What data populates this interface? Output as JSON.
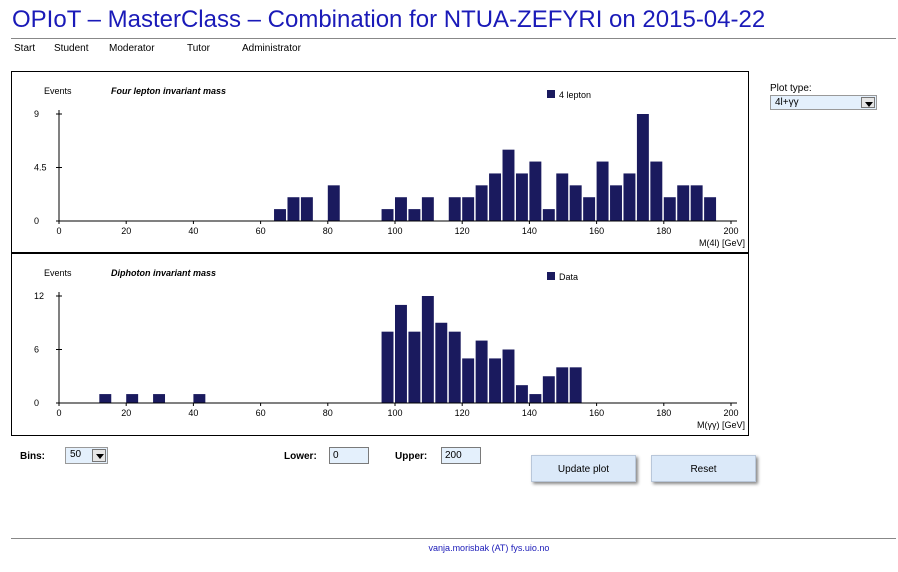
{
  "header": {
    "title": "OPIoT – MasterClass – Combination for NTUA-ZEFYRI on 2015-04-22"
  },
  "nav": {
    "items": [
      "Start",
      "Student",
      "Moderator",
      "Tutor",
      "Administrator"
    ]
  },
  "plot_type": {
    "label": "Plot type:",
    "selected": "4l+γγ"
  },
  "controls": {
    "bins_label": "Bins:",
    "bins_value": "50",
    "lower_label": "Lower:",
    "lower_value": "0",
    "upper_label": "Upper:",
    "upper_value": "200",
    "update_button": "Update plot",
    "reset_button": "Reset"
  },
  "footer": {
    "contact": "vanja.morisbak (AT) fys.uio.no"
  },
  "colors": {
    "bar": "#1a1a5e",
    "title": "#1a1ab8"
  },
  "chart_data": [
    {
      "type": "bar",
      "title": "Four lepton invariant mass",
      "ylabel": "Events",
      "xlabel": "M(4l) [GeV]",
      "legend": "4 lepton",
      "xlim": [
        0,
        200
      ],
      "yticks": [
        "0",
        "4.5",
        "9"
      ],
      "ylim": [
        0,
        9
      ],
      "xticks": [
        0,
        20,
        40,
        60,
        80,
        100,
        120,
        140,
        160,
        180,
        200
      ],
      "bin_width": 4,
      "x": [
        64,
        68,
        72,
        80,
        96,
        100,
        104,
        108,
        116,
        120,
        124,
        128,
        132,
        136,
        140,
        144,
        148,
        152,
        156,
        160,
        164,
        168,
        172,
        176,
        180,
        184,
        188,
        192
      ],
      "values": [
        1,
        2,
        2,
        3,
        1,
        2,
        1,
        2,
        2,
        2,
        3,
        4,
        6,
        4,
        5,
        1,
        4,
        3,
        2,
        5,
        3,
        4,
        9,
        5,
        2,
        3,
        3,
        2
      ]
    },
    {
      "type": "bar",
      "title": "Diphoton invariant mass",
      "ylabel": "Events",
      "xlabel": "M(γγ) [GeV]",
      "legend": "Data",
      "xlim": [
        0,
        200
      ],
      "yticks": [
        "0",
        "6",
        "12"
      ],
      "ylim": [
        0,
        12
      ],
      "xticks": [
        0,
        20,
        40,
        60,
        80,
        100,
        120,
        140,
        160,
        180,
        200
      ],
      "bin_width": 4,
      "x": [
        12,
        20,
        28,
        40,
        96,
        100,
        104,
        108,
        112,
        116,
        120,
        124,
        128,
        132,
        136,
        140,
        144,
        148,
        152
      ],
      "values": [
        1,
        1,
        1,
        1,
        8,
        11,
        8,
        12,
        9,
        8,
        5,
        7,
        5,
        6,
        2,
        1,
        3,
        4,
        4
      ]
    }
  ]
}
